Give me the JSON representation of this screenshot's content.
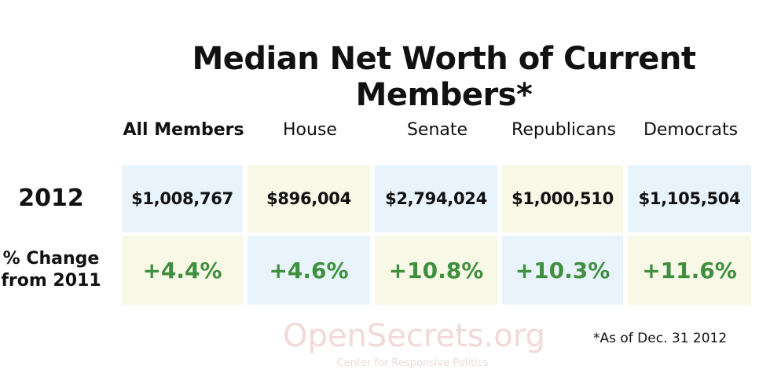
{
  "title": "Median Net Worth of Current Members*",
  "table": {
    "columns": [
      "All Members",
      "House",
      "Senate",
      "Republicans",
      "Democrats"
    ],
    "rows": [
      {
        "label": "2012",
        "cells": [
          "$1,008,767",
          "$896,004",
          "$2,794,024",
          "$1,000,510",
          "$1,105,504"
        ]
      },
      {
        "label": "% Change from 2011",
        "cells": [
          "+4.4%",
          "+4.6%",
          "+10.8%",
          "+10.3%",
          "+11.6%"
        ]
      }
    ]
  },
  "footnote": "*As of Dec. 31 2012",
  "watermark": {
    "name": "OpenSecrets.org",
    "tagline": "Center for Responsive Politics"
  }
}
